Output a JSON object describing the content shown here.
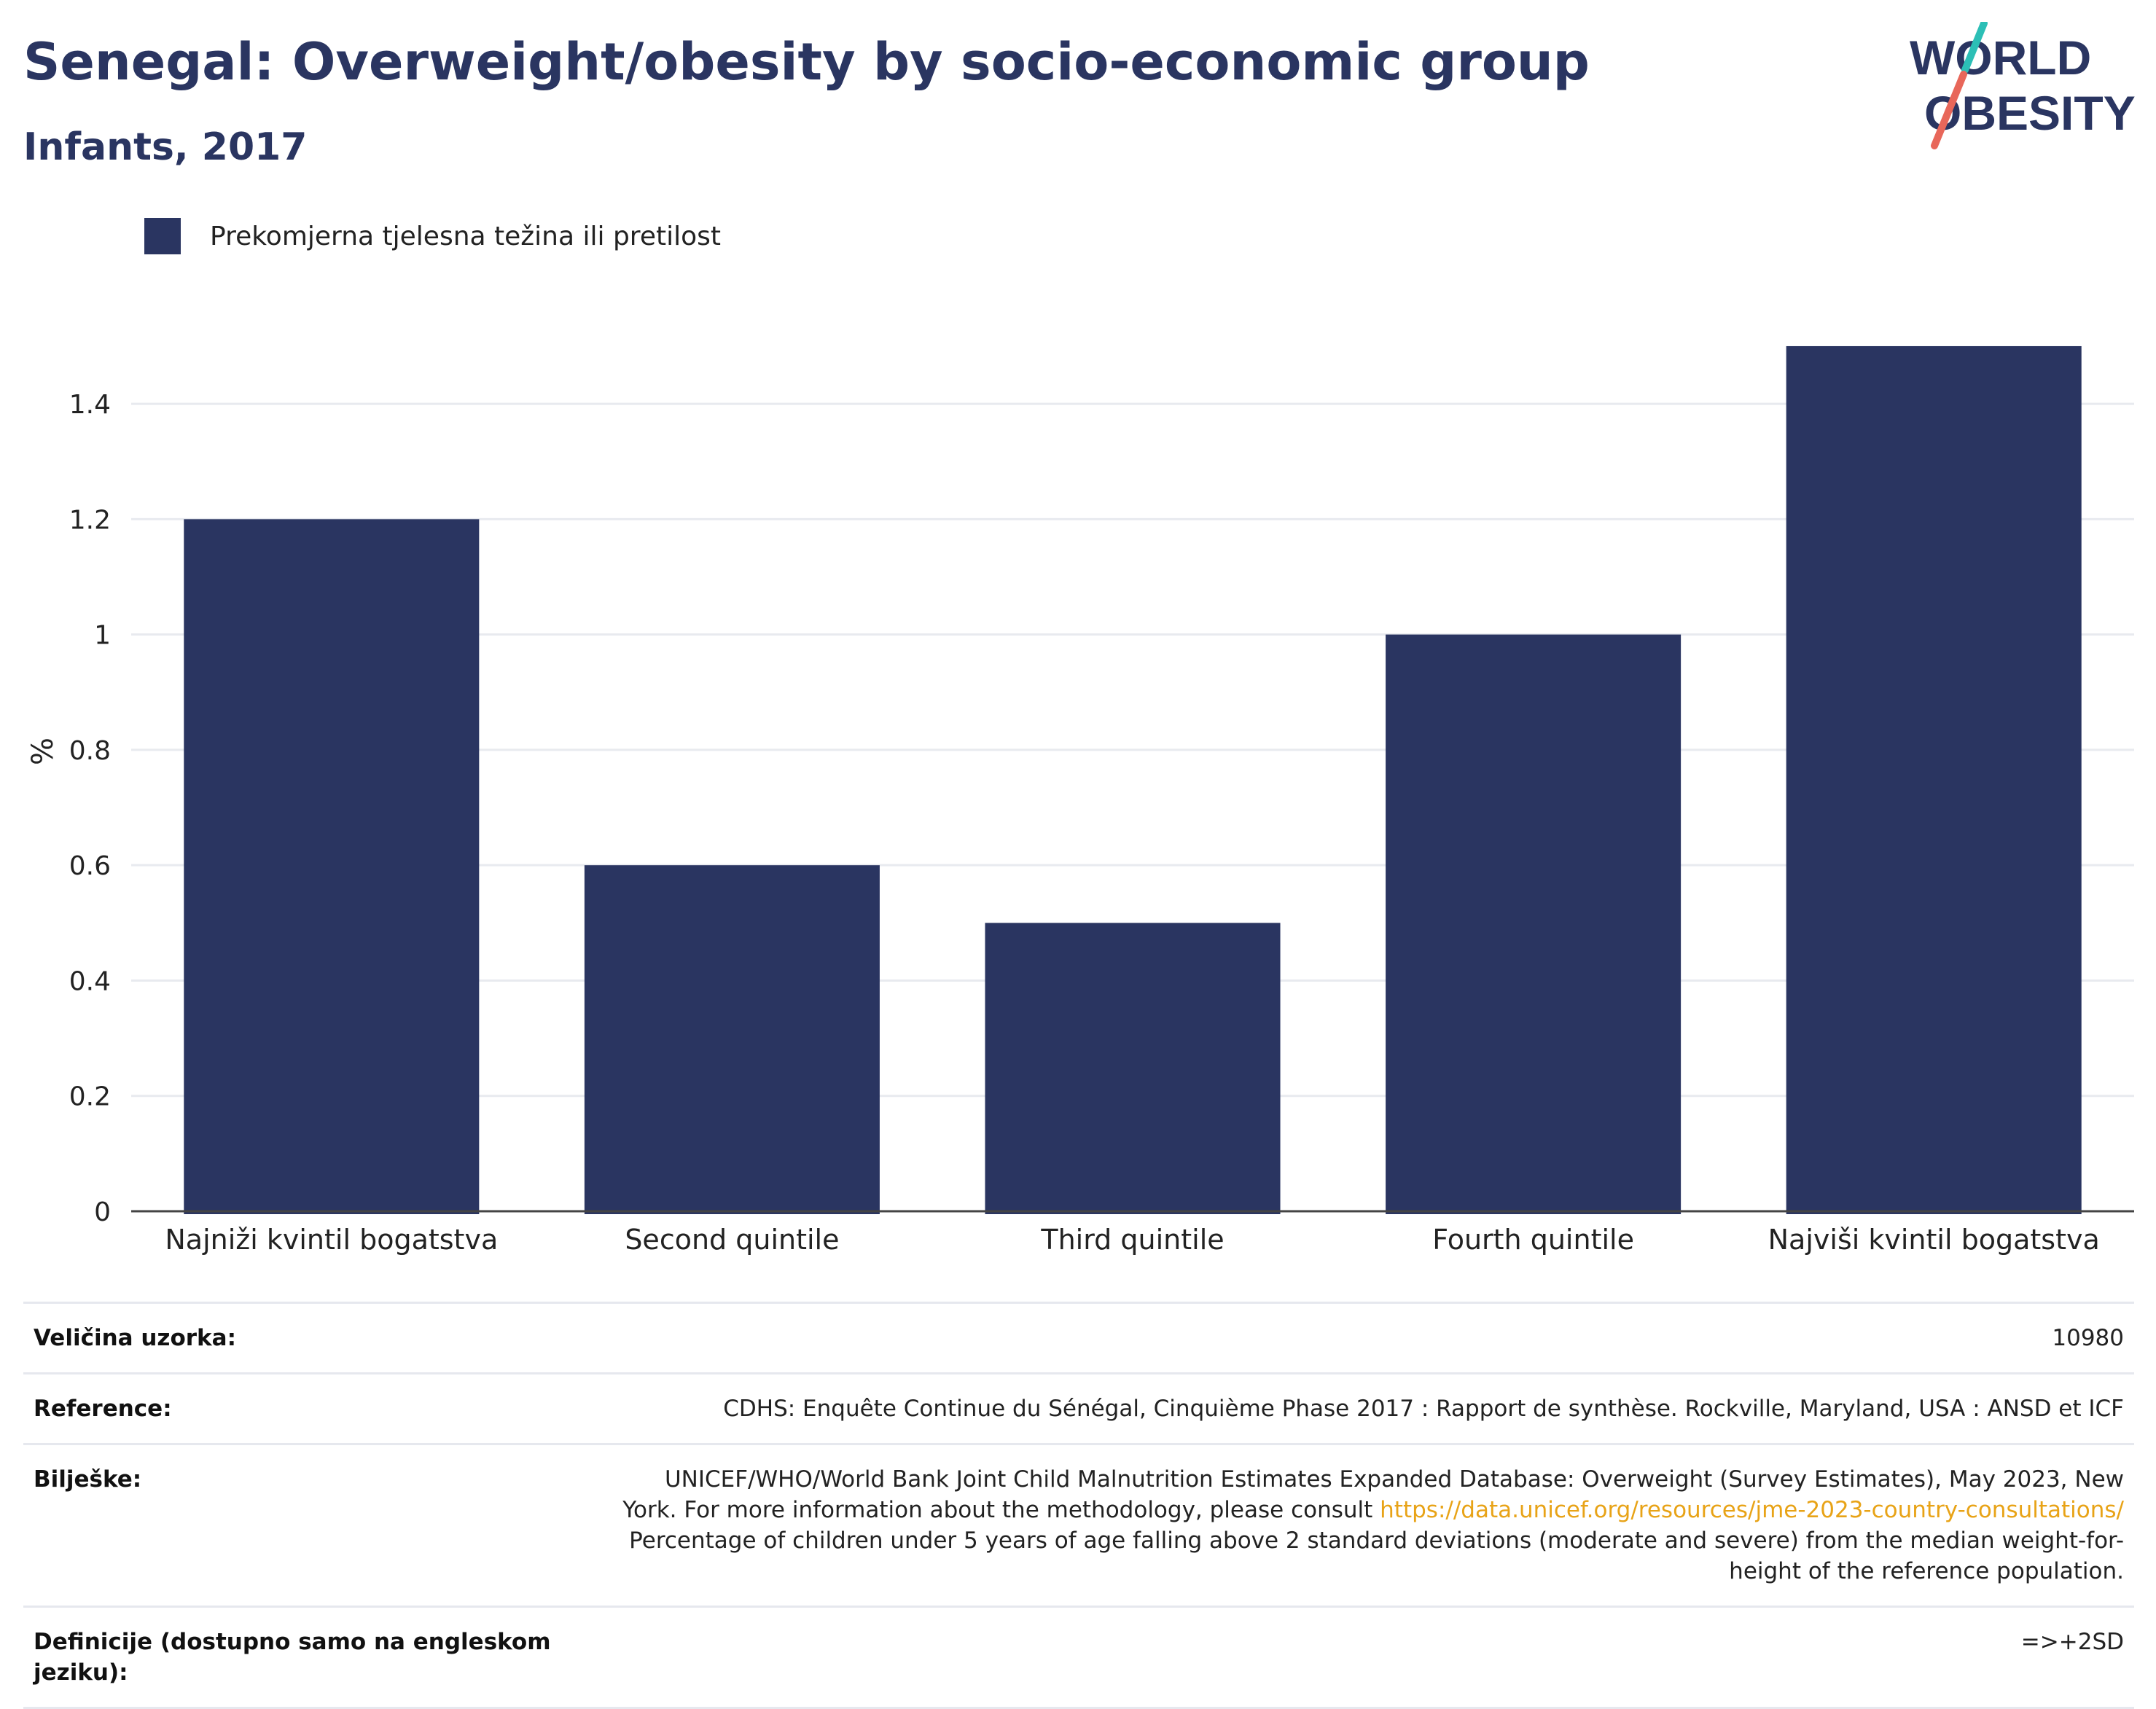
{
  "header": {
    "title": "Senegal: Overweight/obesity by socio-economic group",
    "subtitle": "Infants, 2017"
  },
  "logo": {
    "line1": "WORLD",
    "line2": "OBESITY",
    "colors": {
      "text": "#2a3561",
      "slash_top": "#2cbfb6",
      "slash_bottom": "#e8675a"
    }
  },
  "legend": {
    "label": "Prekomjerna tjelesna težina ili pretilost",
    "color": "#2a3561"
  },
  "chart_data": {
    "type": "bar",
    "categories": [
      "Najniži kvintil bogatstva",
      "Second quintile",
      "Third quintile",
      "Fourth quintile",
      "Najviši kvintil bogatstva"
    ],
    "series": [
      {
        "name": "Prekomjerna tjelesna težina ili pretilost",
        "values": [
          1.2,
          0.6,
          0.5,
          1.0,
          1.5
        ],
        "color": "#2a3561"
      }
    ],
    "ylabel": "%",
    "ylim": [
      0,
      1.62
    ],
    "yticks": [
      0,
      0.2,
      0.4,
      0.6,
      0.8,
      1,
      1.2,
      1.4
    ],
    "ytick_labels": [
      "0",
      "0.2",
      "0.4",
      "0.6",
      "0.8",
      "1",
      "1.2",
      "1.4"
    ],
    "grid": true,
    "legend_position": "top-left"
  },
  "info": {
    "sample_label": "Veličina uzorka:",
    "sample_value": "10980",
    "reference_label": "Reference:",
    "reference_value": "CDHS: Enquête Continue du Sénégal, Cinquième Phase 2017 : Rapport de synthèse. Rockville, Maryland, USA : ANSD et ICF",
    "notes_label": "Bilješke:",
    "notes_text1": "UNICEF/WHO/World Bank Joint Child Malnutrition Estimates Expanded Database: Overweight (Survey Estimates), May 2023, New York. For more information about the methodology, please consult ",
    "notes_link": "https://data.unicef.org/resources/jme-2023-country-consultations/",
    "notes_text2": "Percentage of children under 5 years of age falling above 2 standard deviations (moderate and severe) from the median weight-for-height of the reference population.",
    "definitions_label": "Definicije (dostupno samo na engleskom jeziku):",
    "definitions_value": "=>+2SD"
  }
}
